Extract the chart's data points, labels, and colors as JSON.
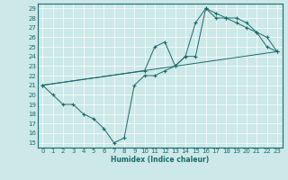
{
  "xlabel": "Humidex (Indice chaleur)",
  "xlim": [
    -0.5,
    23.5
  ],
  "ylim": [
    14.5,
    29.5
  ],
  "xticks": [
    0,
    1,
    2,
    3,
    4,
    5,
    6,
    7,
    8,
    9,
    10,
    11,
    12,
    13,
    14,
    15,
    16,
    17,
    18,
    19,
    20,
    21,
    22,
    23
  ],
  "yticks": [
    15,
    16,
    17,
    18,
    19,
    20,
    21,
    22,
    23,
    24,
    25,
    26,
    27,
    28,
    29
  ],
  "bg_color": "#cce8e8",
  "line_color": "#1a6b6b",
  "grid_color": "#ffffff",
  "line1_x": [
    0,
    1,
    2,
    3,
    4,
    5,
    6,
    7,
    8,
    9,
    10,
    11,
    12,
    13,
    14,
    15,
    16,
    17,
    18,
    19,
    20,
    21,
    22,
    23
  ],
  "line1_y": [
    21,
    20,
    19,
    19,
    18,
    17.5,
    16.5,
    15,
    15.5,
    21,
    22,
    22,
    22.5,
    23,
    24,
    24,
    29,
    28.5,
    28,
    27.5,
    27,
    26.5,
    25,
    24.5
  ],
  "line2_x": [
    0,
    23
  ],
  "line2_y": [
    21,
    24.5
  ],
  "line3_x": [
    0,
    10,
    11,
    12,
    13,
    14,
    15,
    16,
    17,
    18,
    19,
    20,
    21,
    22,
    23
  ],
  "line3_y": [
    21,
    22.5,
    25,
    25.5,
    23,
    24,
    27.5,
    29,
    28,
    28,
    28,
    27.5,
    26.5,
    26,
    24.5
  ]
}
